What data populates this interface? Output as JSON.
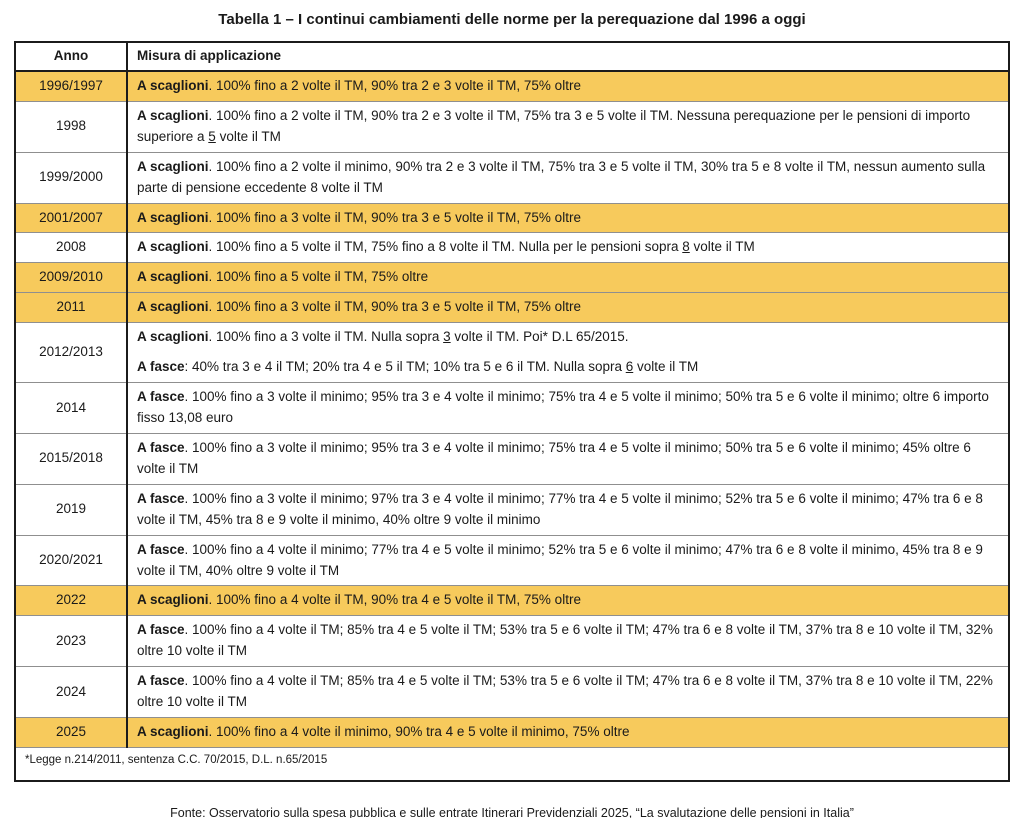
{
  "title": "Tabella 1 – I continui cambiamenti delle norme per la perequazione dal 1996 a oggi",
  "caption": "Fonte: Osservatorio sulla spesa pubblica e sulle entrate Itinerari Previdenziali 2025, “La svalutazione delle pensioni in Italia”",
  "colors": {
    "highlight": "#F7CA5C",
    "border_dark": "#1b1b1b",
    "border_light": "#8f8f8f",
    "text": "#1a1a1a"
  },
  "table": {
    "headers": {
      "year": "Anno",
      "measure": "Misura di applicazione"
    },
    "footnote": "*Legge n.214/2011, sentenza C.C. 70/2015, D.L. n.65/2015",
    "rows": [
      {
        "year": "1996/1997",
        "highlight": true,
        "paragraphs": [
          [
            {
              "t": "A scaglioni",
              "b": true
            },
            {
              "t": ". 100% fino a 2 volte il TM, 90% tra 2 e 3 volte il TM, 75% oltre"
            }
          ]
        ]
      },
      {
        "year": "1998",
        "highlight": false,
        "paragraphs": [
          [
            {
              "t": "A scaglioni",
              "b": true
            },
            {
              "t": ". 100% fino a 2 volte il TM, 90% tra 2 e 3 volte il TM, 75% tra 3 e 5 volte il TM. Nessuna perequazione per le pensioni di importo superiore a "
            },
            {
              "t": "5",
              "u": true
            },
            {
              "t": " volte il TM"
            }
          ]
        ]
      },
      {
        "year": "1999/2000",
        "highlight": false,
        "paragraphs": [
          [
            {
              "t": "A scaglioni",
              "b": true
            },
            {
              "t": ". 100% fino a 2 volte il minimo, 90% tra 2 e 3 volte il TM, 75% tra 3 e 5 volte il TM, 30% tra 5 e 8 volte il TM, nessun aumento sulla parte di pensione eccedente 8 volte il TM"
            }
          ]
        ]
      },
      {
        "year": "2001/2007",
        "highlight": true,
        "paragraphs": [
          [
            {
              "t": "A scaglioni",
              "b": true
            },
            {
              "t": ". 100% fino a 3 volte il TM, 90% tra 3 e 5 volte il TM, 75% oltre"
            }
          ]
        ]
      },
      {
        "year": "2008",
        "highlight": false,
        "paragraphs": [
          [
            {
              "t": "A scaglioni",
              "b": true
            },
            {
              "t": ". 100% fino a 5 volte il TM, 75% fino a 8 volte il TM. Nulla per le pensioni sopra "
            },
            {
              "t": "8",
              "u": true
            },
            {
              "t": " volte il TM"
            }
          ]
        ]
      },
      {
        "year": "2009/2010",
        "highlight": true,
        "paragraphs": [
          [
            {
              "t": "A scaglioni",
              "b": true
            },
            {
              "t": ". 100% fino a 5 volte il TM, 75% oltre"
            }
          ]
        ]
      },
      {
        "year": "2011",
        "highlight": true,
        "paragraphs": [
          [
            {
              "t": "A scaglioni",
              "b": true
            },
            {
              "t": ". 100% fino a 3 volte il TM, 90% tra 3 e 5 volte il TM, 75% oltre"
            }
          ]
        ]
      },
      {
        "year": "2012/2013",
        "highlight": false,
        "paragraphs": [
          [
            {
              "t": "A scaglioni",
              "b": true
            },
            {
              "t": ". 100% fino a 3 volte il TM. Nulla sopra "
            },
            {
              "t": "3",
              "u": true
            },
            {
              "t": " volte il TM. Poi* D.L 65/2015."
            }
          ],
          [
            {
              "t": "A fasce",
              "b": true
            },
            {
              "t": ": 40% tra 3 e 4 il TM; 20% tra 4 e 5 il TM; 10% tra 5 e 6 il TM. Nulla sopra "
            },
            {
              "t": "6",
              "u": true
            },
            {
              "t": " volte il TM"
            }
          ]
        ]
      },
      {
        "year": "2014",
        "highlight": false,
        "paragraphs": [
          [
            {
              "t": "A fasce",
              "b": true
            },
            {
              "t": ". 100% fino a 3 volte il minimo; 95% tra 3 e 4 volte il minimo; 75% tra 4 e 5 volte il minimo; 50% tra 5 e 6 volte il minimo; oltre 6 importo fisso 13,08 euro"
            }
          ]
        ]
      },
      {
        "year": "2015/2018",
        "highlight": false,
        "paragraphs": [
          [
            {
              "t": "A fasce",
              "b": true
            },
            {
              "t": ". 100% fino a 3 volte il minimo; 95% tra 3 e 4 volte il minimo; 75% tra 4 e 5 volte il minimo; 50% tra 5 e 6 volte il minimo; 45% oltre 6 volte il TM"
            }
          ]
        ]
      },
      {
        "year": "2019",
        "highlight": false,
        "paragraphs": [
          [
            {
              "t": "A fasce",
              "b": true
            },
            {
              "t": ". 100% fino a 3 volte il minimo; 97% tra 3 e 4 volte il minimo; 77% tra 4 e 5 volte il minimo; 52% tra 5 e 6 volte il minimo; 47% tra 6 e 8 volte il TM, 45% tra 8 e 9 volte il minimo, 40% oltre 9 volte il minimo"
            }
          ]
        ]
      },
      {
        "year": "2020/2021",
        "highlight": false,
        "paragraphs": [
          [
            {
              "t": "A fasce",
              "b": true
            },
            {
              "t": ". 100% fino a 4 volte il minimo; 77% tra 4 e 5 volte il minimo; 52% tra 5 e 6 volte il minimo; 47% tra 6 e 8 volte il minimo, 45% tra 8 e 9 volte il TM, 40% oltre 9 volte il TM"
            }
          ]
        ]
      },
      {
        "year": "2022",
        "highlight": true,
        "paragraphs": [
          [
            {
              "t": "A scaglioni",
              "b": true
            },
            {
              "t": ". 100% fino a 4 volte il TM, 90% tra 4 e 5 volte il TM, 75% oltre"
            }
          ]
        ]
      },
      {
        "year": "2023",
        "highlight": false,
        "paragraphs": [
          [
            {
              "t": "A fasce",
              "b": true
            },
            {
              "t": ". 100% fino a 4 volte il TM; 85% tra 4 e 5 volte il TM; 53% tra 5 e 6 volte il TM; 47% tra 6 e 8 volte il TM, 37% tra 8 e 10 volte il TM, 32% oltre 10 volte il TM"
            }
          ]
        ]
      },
      {
        "year": "2024",
        "highlight": false,
        "paragraphs": [
          [
            {
              "t": "A fasce",
              "b": true
            },
            {
              "t": ". 100% fino a 4 volte il TM; 85% tra 4 e 5 volte il TM; 53% tra 5 e 6 volte il TM; 47% tra 6 e 8 volte il TM, 37% tra 8 e 10 volte il TM, 22% oltre 10 volte il TM"
            }
          ]
        ]
      },
      {
        "year": "2025",
        "highlight": true,
        "paragraphs": [
          [
            {
              "t": "A scaglioni",
              "b": true
            },
            {
              "t": ". 100% fino a 4 volte il minimo, 90% tra 4 e 5 volte il minimo, 75% oltre"
            }
          ]
        ]
      }
    ]
  }
}
